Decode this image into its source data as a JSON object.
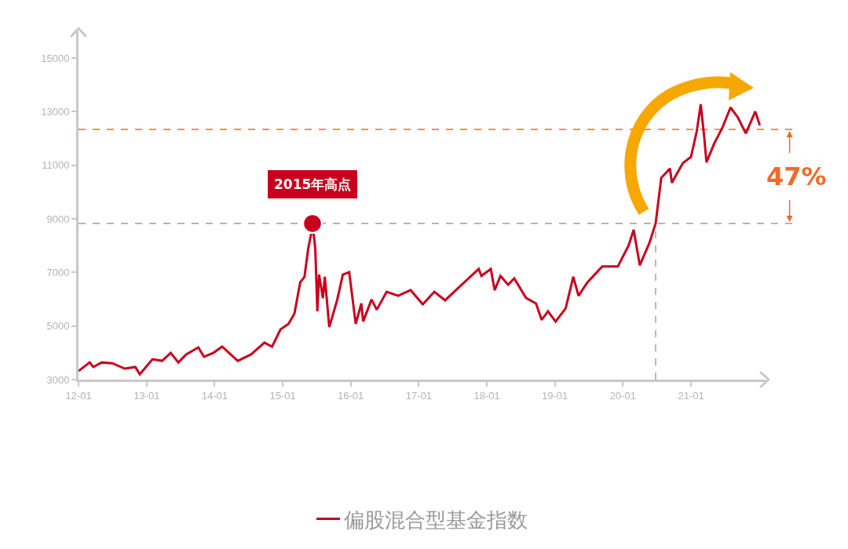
{
  "chart_data": {
    "type": "line",
    "x": [
      "2012-01-01",
      "2012-03-01",
      "2012-03-20",
      "2012-05-05",
      "2012-07-01",
      "2012-09-05",
      "2012-11-01",
      "2012-11-25",
      "2013-02-01",
      "2013-03-25",
      "2013-05-10",
      "2013-06-20",
      "2013-08-01",
      "2013-10-05",
      "2013-11-05",
      "2013-12-25",
      "2014-02-10",
      "2014-05-05",
      "2014-07-15",
      "2014-09-25",
      "2014-11-05",
      "2014-12-20",
      "2015-02-01",
      "2015-03-05",
      "2015-04-05",
      "2015-04-28",
      "2015-05-18",
      "2015-06-04",
      "2015-06-10",
      "2015-06-25",
      "2015-07-06",
      "2015-07-15",
      "2015-08-05",
      "2015-08-15",
      "2015-09-08",
      "2015-10-20",
      "2015-11-20",
      "2015-12-24",
      "2016-01-28",
      "2016-02-27",
      "2016-03-08",
      "2016-04-22",
      "2016-05-20",
      "2016-07-12",
      "2016-09-12",
      "2016-11-18",
      "2017-01-22",
      "2017-03-25",
      "2017-05-22",
      "2017-07-28",
      "2017-09-25",
      "2017-11-18",
      "2017-12-03",
      "2018-01-22",
      "2018-02-12",
      "2018-03-15",
      "2018-04-25",
      "2018-05-28",
      "2018-07-30",
      "2018-09-22",
      "2018-10-22",
      "2018-11-25",
      "2019-01-05",
      "2019-02-28",
      "2019-04-10",
      "2019-05-08",
      "2019-06-25",
      "2019-09-12",
      "2019-12-05",
      "2020-02-01",
      "2020-02-28",
      "2020-04-01",
      "2020-05-22",
      "2020-06-25",
      "2020-07-25",
      "2020-09-10",
      "2020-09-20",
      "2020-11-18",
      "2021-01-01",
      "2021-02-01",
      "2021-02-22",
      "2021-03-12",
      "2021-03-25",
      "2021-05-05",
      "2021-06-18",
      "2021-08-01",
      "2021-09-10",
      "2021-10-22",
      "2021-12-12",
      "2022-01-05"
    ],
    "series": [
      {
        "name": "偏股混合型基金指数",
        "color": "#c8001e",
        "values": [
          3320,
          3640,
          3470,
          3640,
          3610,
          3410,
          3470,
          3200,
          3760,
          3700,
          4000,
          3640,
          3940,
          4200,
          3850,
          4000,
          4230,
          3700,
          3940,
          4380,
          4230,
          4870,
          5080,
          5460,
          6630,
          6840,
          7890,
          8480,
          8830,
          7890,
          5550,
          6920,
          6040,
          6840,
          4960,
          5960,
          6920,
          7010,
          5080,
          5840,
          5170,
          5990,
          5610,
          6280,
          6130,
          6340,
          5810,
          6280,
          5960,
          6400,
          6780,
          7130,
          6870,
          7130,
          6340,
          6870,
          6540,
          6780,
          6050,
          5840,
          5230,
          5550,
          5170,
          5660,
          6840,
          6130,
          6630,
          7220,
          7220,
          8010,
          8590,
          7270,
          8090,
          8830,
          10530,
          10880,
          10350,
          11080,
          11320,
          12280,
          13280,
          12110,
          11110,
          11810,
          12400,
          13160,
          12780,
          12190,
          13010,
          12490
        ]
      },
      {
        "type": "scatter",
        "marker": "circle",
        "x": [
          "2015-06-10"
        ],
        "values": [
          8830
        ],
        "color": "#c8001e"
      }
    ],
    "xlim": [
      "2012-01-01",
      "2022-02-05"
    ],
    "xticks": [
      {
        "value": "2012-01-01",
        "label": "12-01"
      },
      {
        "value": "2013-01-01",
        "label": "13-01"
      },
      {
        "value": "2014-01-01",
        "label": "14-01"
      },
      {
        "value": "2015-01-01",
        "label": "15-01"
      },
      {
        "value": "2016-01-01",
        "label": "16-01"
      },
      {
        "value": "2017-01-01",
        "label": "17-01"
      },
      {
        "value": "2018-01-01",
        "label": "18-01"
      },
      {
        "value": "2019-01-01",
        "label": "19-01"
      },
      {
        "value": "2020-01-01",
        "label": "20-01"
      },
      {
        "value": "2021-01-01",
        "label": "21-01"
      }
    ],
    "ylim": [
      3000,
      16000
    ],
    "yticks": [
      3000,
      5000,
      7000,
      9000,
      11000,
      13000,
      15000
    ],
    "ref_lines": [
      {
        "axis": "y",
        "value": 8830,
        "color": "#aaaaaa",
        "line_style": "dashed"
      },
      {
        "axis": "x",
        "value": "2020-06-25",
        "color": "#aaaaaa",
        "line_style": "dashed"
      },
      {
        "axis": "y",
        "value": 12340,
        "color": "#f06a2a",
        "line_style": "dashed"
      }
    ],
    "annotations": [
      {
        "text": "2015年高点",
        "x": "2015-06-10",
        "y": 8830
      },
      "47%"
    ],
    "marker": "none",
    "line_style": "solid",
    "grid": false,
    "legend": "bottom"
  }
}
